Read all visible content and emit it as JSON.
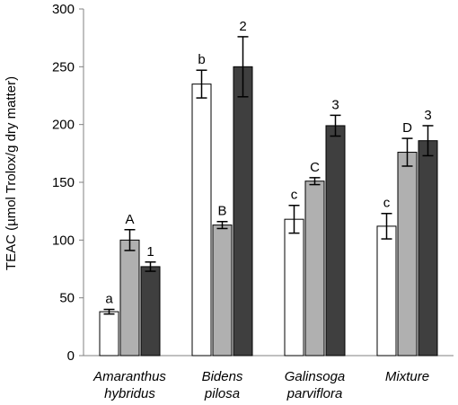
{
  "chart_data": {
    "type": "bar",
    "title": "",
    "xlabel": "",
    "ylabel": "TEAC (µmol Trolox/g dry matter)",
    "ylim": [
      0,
      300
    ],
    "yticks": [
      0,
      50,
      100,
      150,
      200,
      250,
      300
    ],
    "grid": false,
    "legend": "none",
    "categories": [
      {
        "line1": "Amaranthus",
        "line2": "hybridus"
      },
      {
        "line1": "Bidens",
        "line2": "pilosa"
      },
      {
        "line1": "Galinsoga",
        "line2": "parviflora"
      },
      {
        "line1": "Mixture",
        "line2": ""
      }
    ],
    "series": [
      {
        "color": "#ffffff",
        "values": [
          38,
          235,
          118,
          112
        ],
        "errors": [
          2,
          12,
          12,
          11
        ],
        "labels": [
          "a",
          "b",
          "c",
          "c"
        ]
      },
      {
        "color": "#b0b0b0",
        "values": [
          100,
          113,
          151,
          176
        ],
        "errors": [
          9,
          3,
          3,
          12
        ],
        "labels": [
          "A",
          "B",
          "C",
          "D"
        ]
      },
      {
        "color": "#3f3f3f",
        "values": [
          77,
          250,
          199,
          186
        ],
        "errors": [
          4,
          26,
          9,
          13
        ],
        "labels": [
          "1",
          "2",
          "3",
          "3"
        ]
      }
    ]
  }
}
